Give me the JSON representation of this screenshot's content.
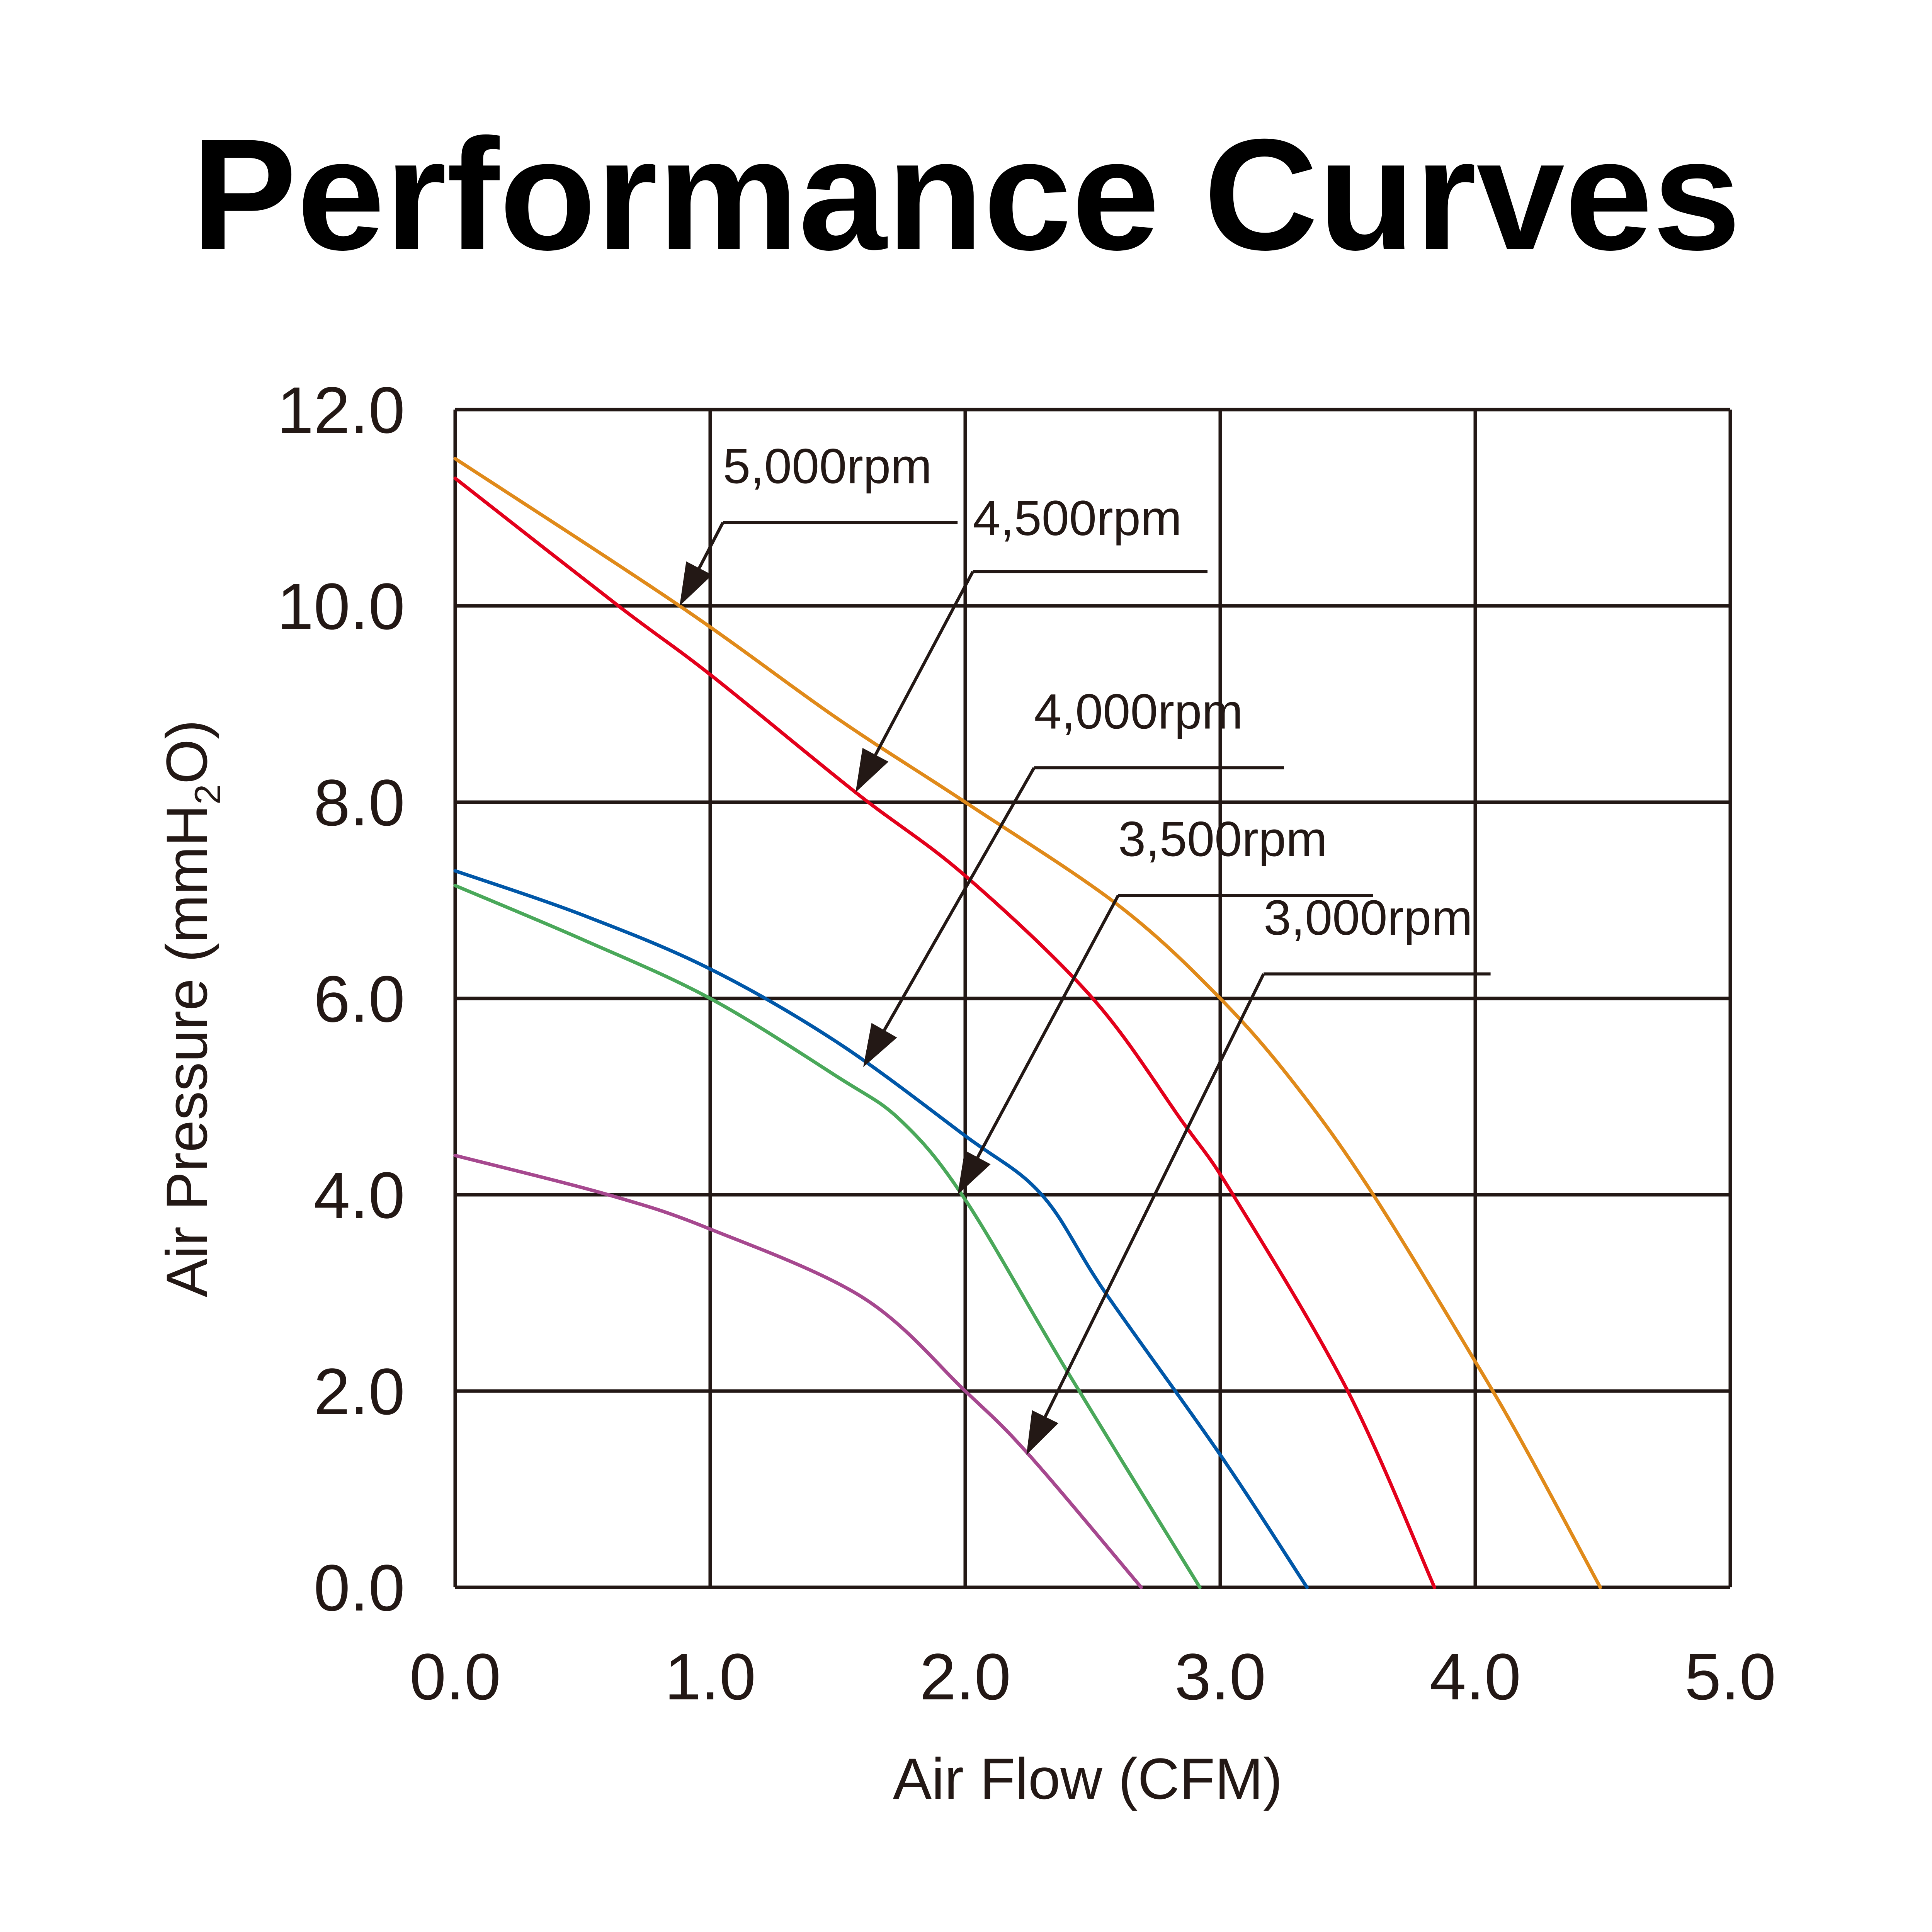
{
  "chart_data": {
    "type": "line",
    "title": "Performance Curves",
    "xlabel": "Air Flow (CFM)",
    "ylabel": {
      "prefix": "Air Pressure (mmH",
      "sub": "2",
      "suffix": "O)"
    },
    "xlim": [
      0,
      5
    ],
    "ylim": [
      0,
      12
    ],
    "xticks": [
      "0.0",
      "1.0",
      "2.0",
      "3.0",
      "4.0",
      "5.0"
    ],
    "yticks": [
      "0.0",
      "2.0",
      "4.0",
      "6.0",
      "8.0",
      "10.0",
      "12.0"
    ],
    "grid": true,
    "series": [
      {
        "name": "5,000rpm",
        "color": "#e08a1a",
        "x": [
          0,
          0.88,
          1.5,
          2.0,
          2.6,
          3.0,
          3.3,
          3.6,
          4.0,
          4.2,
          4.49
        ],
        "y": [
          11.5,
          10.0,
          8.85,
          8.0,
          6.95,
          6.0,
          5.1,
          4.0,
          2.3,
          1.4,
          0
        ],
        "annotation": {
          "label_x": 1.05,
          "label_y": 11.25,
          "shelf_x": [
            1.05,
            1.97
          ],
          "shelf_y": 10.85,
          "point": [
            0.88,
            10.0
          ]
        }
      },
      {
        "name": "4,500rpm",
        "color": "#e3001b",
        "x": [
          0,
          0.64,
          1.0,
          1.57,
          2.0,
          2.5,
          2.85,
          3.05,
          3.5,
          3.84
        ],
        "y": [
          11.3,
          10.0,
          9.3,
          8.1,
          7.25,
          6.0,
          4.75,
          4.0,
          2.0,
          0
        ],
        "annotation": {
          "label_x": 2.03,
          "label_y": 10.72,
          "shelf_x": [
            2.03,
            2.95
          ],
          "shelf_y": 10.35,
          "point": [
            1.57,
            8.1
          ]
        }
      },
      {
        "name": "4,000rpm",
        "color": "#0057a8",
        "x": [
          0,
          0.5,
          1.0,
          1.5,
          2.0,
          2.3,
          2.55,
          3.0,
          3.34
        ],
        "y": [
          7.3,
          6.85,
          6.3,
          5.55,
          4.6,
          4.0,
          3.0,
          1.35,
          0
        ],
        "annotation": {
          "label_x": 2.27,
          "label_y": 8.75,
          "shelf_x": [
            2.27,
            3.25
          ],
          "shelf_y": 8.35,
          "point": [
            1.6,
            5.3
          ]
        }
      },
      {
        "name": "3,500rpm",
        "color": "#4aa85a",
        "x": [
          0,
          0.5,
          1.0,
          1.5,
          1.75,
          2.0,
          2.4,
          2.92
        ],
        "y": [
          7.15,
          6.6,
          6.0,
          5.2,
          4.75,
          3.95,
          2.2,
          0
        ],
        "annotation": {
          "label_x": 2.6,
          "label_y": 7.45,
          "shelf_x": [
            2.6,
            3.6
          ],
          "shelf_y": 7.05,
          "point": [
            1.97,
            4.0
          ]
        }
      },
      {
        "name": "3,000rpm",
        "color": "#a6488f",
        "x": [
          0,
          0.6,
          1.0,
          1.6,
          2.0,
          2.25,
          2.69
        ],
        "y": [
          4.4,
          4.0,
          3.65,
          2.95,
          2.0,
          1.35,
          0
        ],
        "annotation": {
          "label_x": 3.17,
          "label_y": 6.65,
          "shelf_x": [
            3.17,
            4.06
          ],
          "shelf_y": 6.25,
          "point": [
            2.24,
            1.35
          ]
        }
      }
    ]
  }
}
